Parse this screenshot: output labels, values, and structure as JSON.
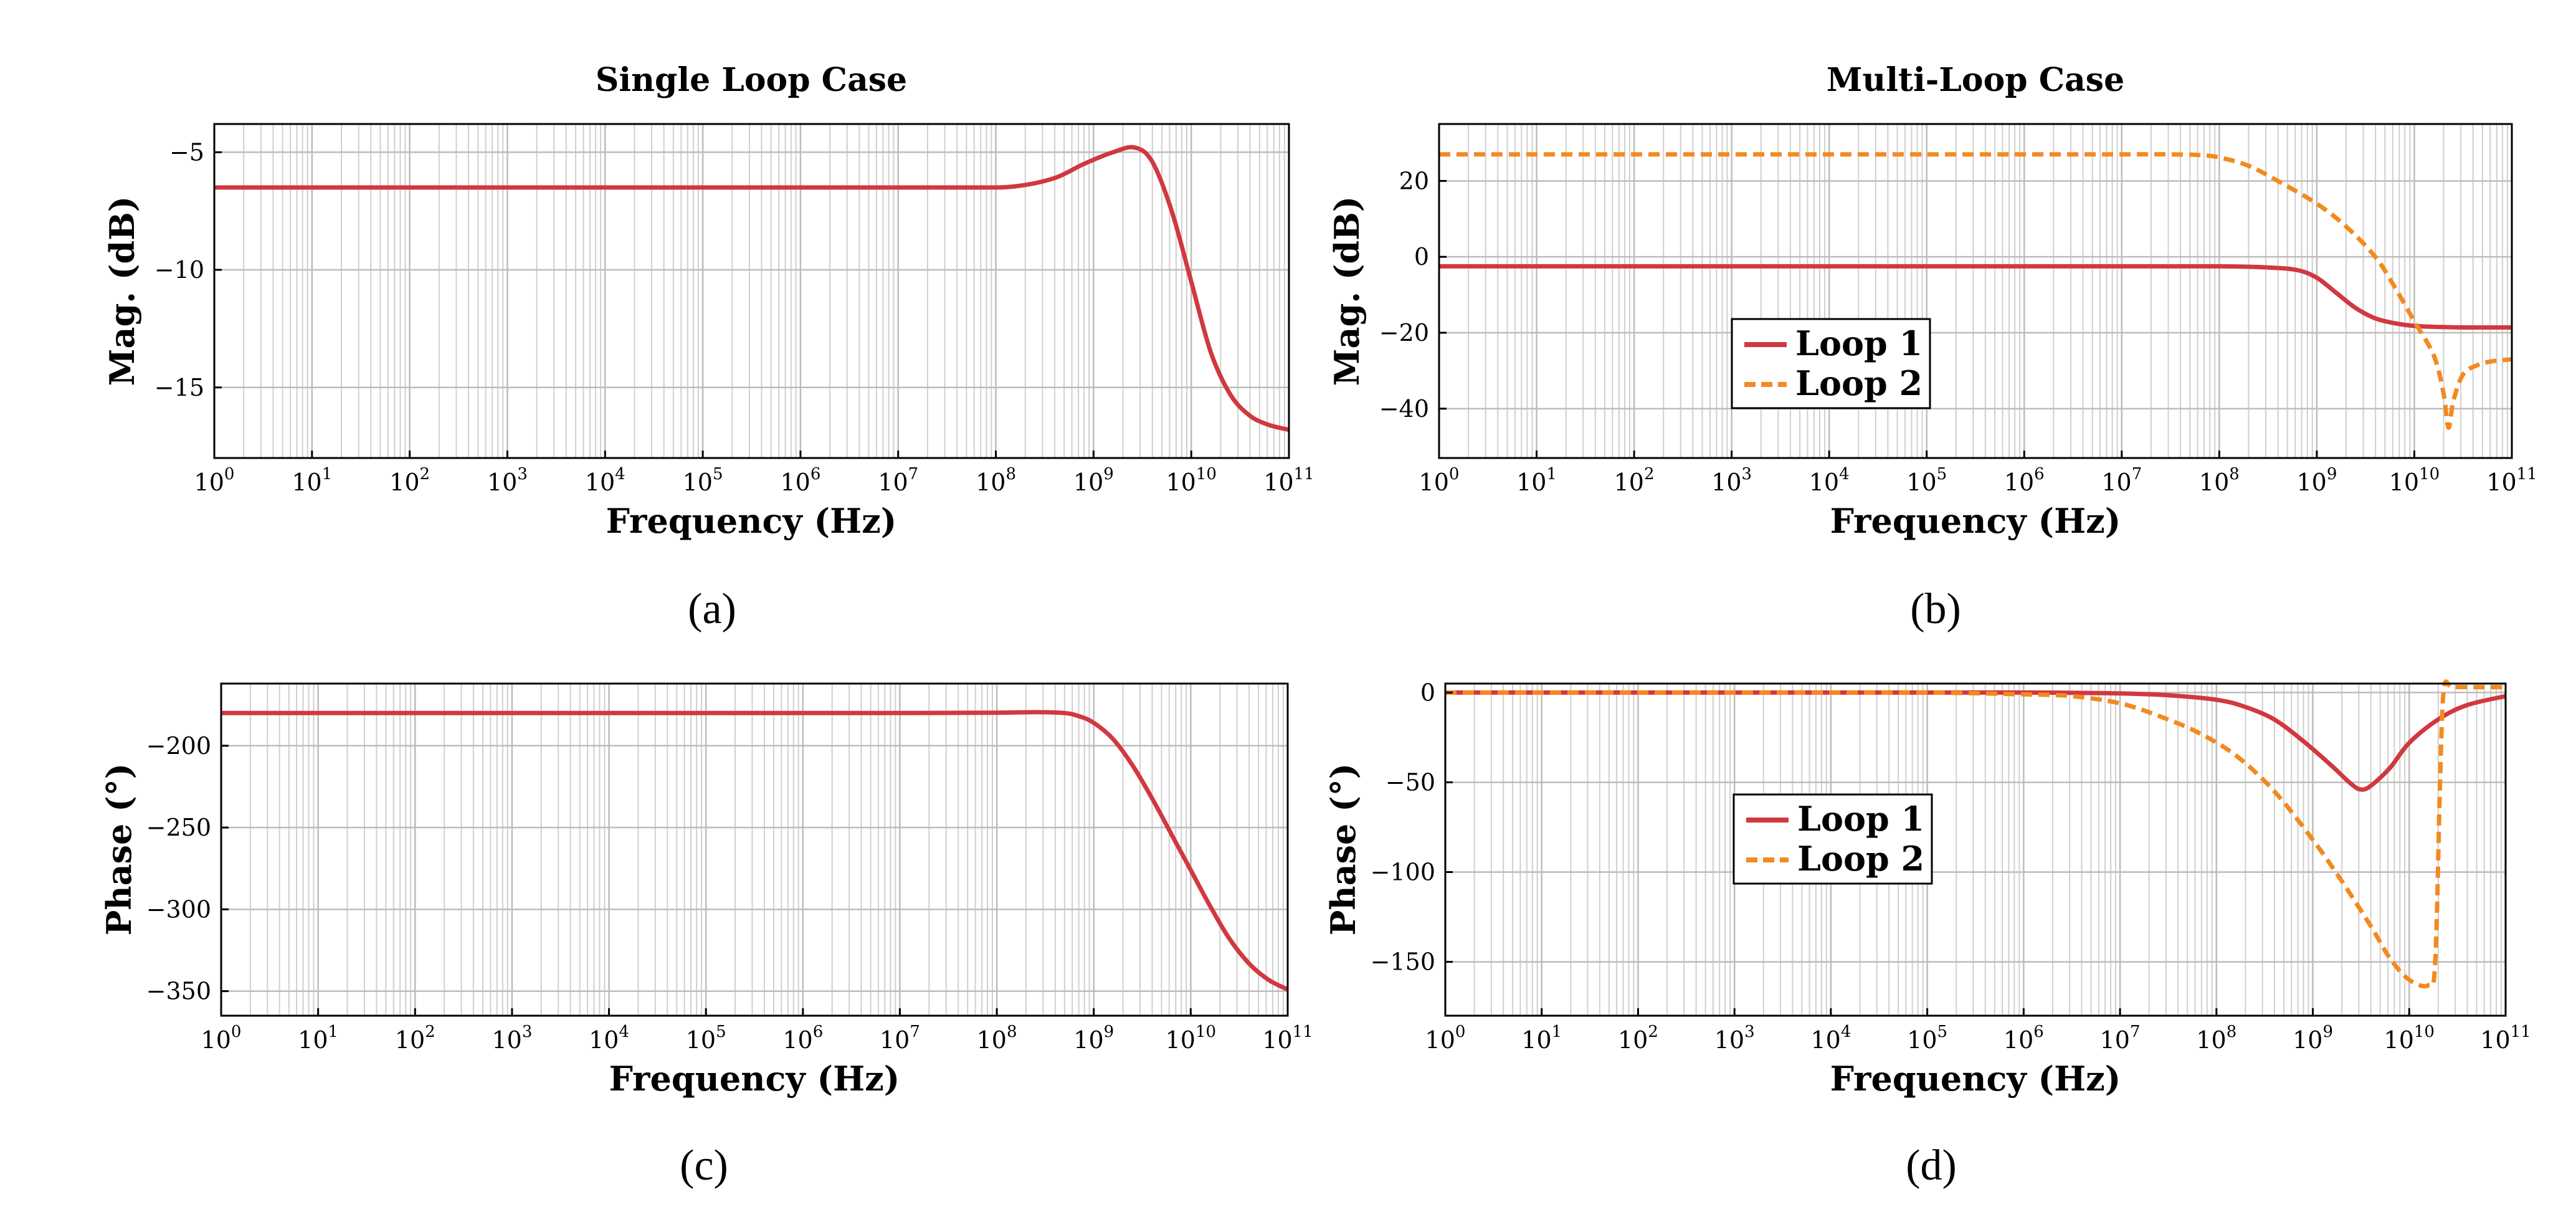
{
  "chart_data": [
    {
      "id": "a",
      "type": "line",
      "title": "Single Loop Case",
      "xlabel": "Frequency (Hz)",
      "ylabel": "Mag. (dB)",
      "xscale": "log",
      "xlim": [
        1,
        100000000000
      ],
      "ylim": [
        -18,
        -3.8
      ],
      "yticks": [
        -5,
        -10,
        -15
      ],
      "ytick_labels": [
        "−5",
        "−10",
        "−15"
      ],
      "grid": true,
      "caption": "(a)",
      "legend": null,
      "series": [
        {
          "name": "Loop 1",
          "color": "#d1383f",
          "dash": "solid",
          "x_log10": [
            0,
            1,
            2,
            3,
            4,
            5,
            6,
            7,
            7.8,
            8.2,
            8.6,
            8.9,
            9.2,
            9.42,
            9.6,
            9.8,
            10.0,
            10.2,
            10.4,
            10.6,
            10.8,
            11.0
          ],
          "y": [
            -6.5,
            -6.5,
            -6.5,
            -6.5,
            -6.5,
            -6.5,
            -6.5,
            -6.5,
            -6.5,
            -6.45,
            -6.1,
            -5.5,
            -5.0,
            -4.8,
            -5.4,
            -7.5,
            -10.5,
            -13.5,
            -15.3,
            -16.2,
            -16.6,
            -16.8
          ]
        }
      ]
    },
    {
      "id": "b",
      "type": "line",
      "title": "Multi-Loop Case",
      "xlabel": "Frequency (Hz)",
      "ylabel": "Mag. (dB)",
      "xscale": "log",
      "xlim": [
        1,
        100000000000
      ],
      "ylim": [
        -53,
        35
      ],
      "yticks": [
        20,
        0,
        -20,
        -40
      ],
      "ytick_labels": [
        "20",
        "0",
        "−20",
        "−40"
      ],
      "grid": true,
      "caption": "(b)",
      "legend": {
        "location": "center",
        "entries": [
          "Loop 1",
          "Loop 2"
        ]
      },
      "series": [
        {
          "name": "Loop 1",
          "color": "#d1383f",
          "dash": "solid",
          "x_log10": [
            0,
            2,
            4,
            6,
            7,
            8,
            8.5,
            8.8,
            9.0,
            9.2,
            9.4,
            9.6,
            9.8,
            10.0,
            10.3,
            10.6,
            11.0
          ],
          "y": [
            -2.5,
            -2.5,
            -2.5,
            -2.5,
            -2.5,
            -2.5,
            -2.8,
            -3.5,
            -5.5,
            -9.5,
            -13.5,
            -16.2,
            -17.5,
            -18.2,
            -18.5,
            -18.6,
            -18.6
          ]
        },
        {
          "name": "Loop 2",
          "color": "#f28a1f",
          "dash": "dashed",
          "x_log10": [
            0,
            2,
            4,
            6,
            7,
            7.5,
            7.8,
            8.0,
            8.3,
            8.6,
            9.0,
            9.3,
            9.6,
            9.8,
            10.0,
            10.2,
            10.3,
            10.35,
            10.4,
            10.5,
            10.65,
            10.8,
            11.0
          ],
          "y": [
            27,
            27,
            27,
            27,
            27,
            27,
            26.8,
            26.2,
            24,
            20,
            14,
            8,
            0,
            -8,
            -17,
            -26,
            -36,
            -45,
            -38,
            -31,
            -28.5,
            -27.5,
            -27
          ]
        }
      ]
    },
    {
      "id": "c",
      "type": "line",
      "title": "",
      "xlabel": "Frequency (Hz)",
      "ylabel": "Phase (°)",
      "xscale": "log",
      "xlim": [
        1,
        100000000000
      ],
      "ylim": [
        -365,
        -162
      ],
      "yticks": [
        -200,
        -250,
        -300,
        -350
      ],
      "ytick_labels": [
        "−200",
        "−250",
        "−300",
        "−350"
      ],
      "grid": true,
      "caption": "(c)",
      "legend": null,
      "series": [
        {
          "name": "Loop 1",
          "color": "#d1383f",
          "dash": "solid",
          "x_log10": [
            0,
            2,
            4,
            6,
            7,
            8,
            8.4,
            8.7,
            8.85,
            9.0,
            9.2,
            9.4,
            9.6,
            9.8,
            10.0,
            10.2,
            10.4,
            10.6,
            10.8,
            11.0
          ],
          "y": [
            -180,
            -180,
            -180,
            -180,
            -180,
            -179.8,
            -179.5,
            -180,
            -182,
            -186,
            -196,
            -212,
            -232,
            -254,
            -276,
            -298,
            -318,
            -333,
            -343,
            -349
          ]
        }
      ]
    },
    {
      "id": "d",
      "type": "line",
      "title": "",
      "xlabel": "Frequency (Hz)",
      "ylabel": "Phase (°)",
      "xscale": "log",
      "xlim": [
        1,
        100000000000
      ],
      "ylim": [
        -180,
        5
      ],
      "yticks": [
        0,
        -50,
        -100,
        -150
      ],
      "ytick_labels": [
        "0",
        "−50",
        "−100",
        "−150"
      ],
      "grid": true,
      "caption": "(d)",
      "legend": {
        "location": "center",
        "entries": [
          "Loop 1",
          "Loop 2"
        ]
      },
      "series": [
        {
          "name": "Loop 1",
          "color": "#d1383f",
          "dash": "solid",
          "x_log10": [
            0,
            2,
            4,
            6,
            7,
            7.5,
            8.0,
            8.3,
            8.6,
            8.9,
            9.2,
            9.4,
            9.5,
            9.6,
            9.8,
            10.0,
            10.3,
            10.6,
            11.0
          ],
          "y": [
            0,
            0,
            0,
            0,
            -0.5,
            -1.5,
            -4,
            -8,
            -15,
            -27,
            -41,
            -51,
            -54,
            -52,
            -42,
            -28,
            -15,
            -7,
            -2
          ]
        },
        {
          "name": "Loop 2",
          "color": "#f28a1f",
          "dash": "dashed",
          "x_log10": [
            0,
            2,
            4,
            5,
            6,
            6.5,
            7.0,
            7.4,
            7.8,
            8.2,
            8.6,
            9.0,
            9.3,
            9.6,
            9.8,
            10.0,
            10.2,
            10.27,
            10.32,
            10.36,
            10.45,
            10.7,
            11.0
          ],
          "y": [
            0,
            0,
            0,
            0,
            -1,
            -2,
            -6,
            -13,
            -22,
            -35,
            -55,
            -82,
            -105,
            -130,
            -148,
            -160,
            -163,
            -150,
            -50,
            2,
            3,
            3,
            3
          ]
        }
      ]
    }
  ]
}
